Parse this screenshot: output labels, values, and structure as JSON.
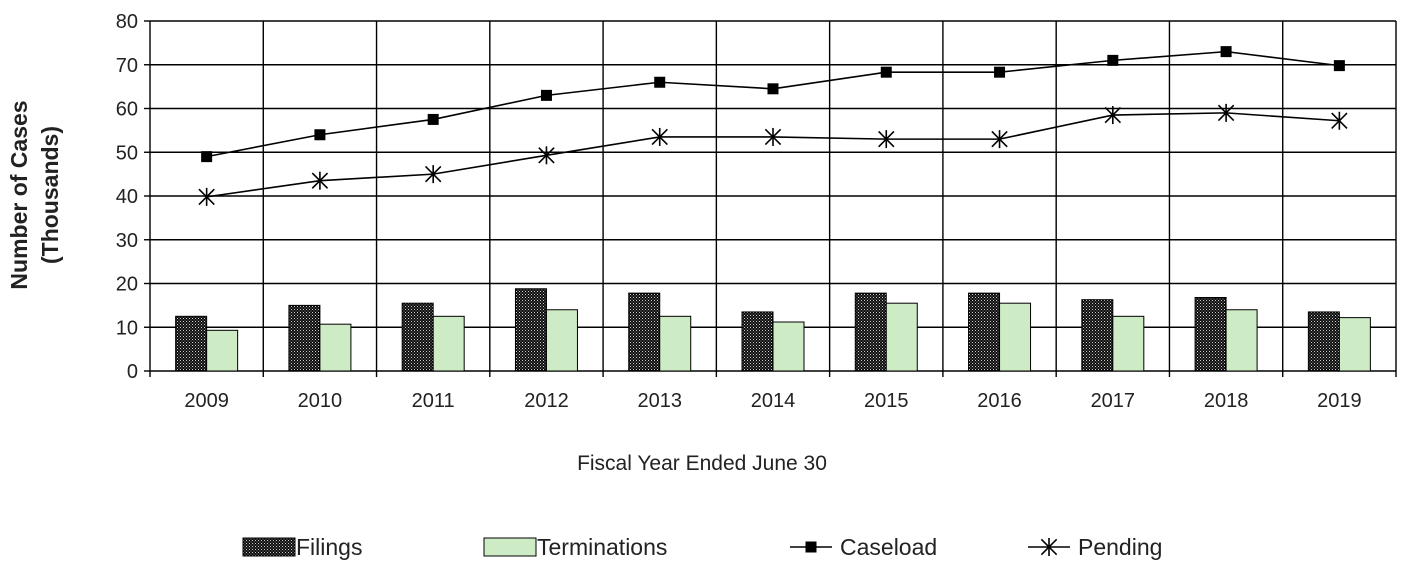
{
  "chart_data": {
    "type": "bar",
    "title": "",
    "xlabel": "Fiscal Year Ended June 30",
    "ylabel_lines": [
      "Number of Cases",
      "(Thousands)"
    ],
    "ylim": [
      0,
      80
    ],
    "yticks": [
      0,
      10,
      20,
      30,
      40,
      50,
      60,
      70,
      80
    ],
    "grid": true,
    "legend_position": "bottom",
    "categories": [
      "2009",
      "2010",
      "2011",
      "2012",
      "2013",
      "2014",
      "2015",
      "2016",
      "2017",
      "2018",
      "2019"
    ],
    "series": [
      {
        "name": "Filings",
        "kind": "bar",
        "style": "hatched-dark",
        "color": "#1a1a1a",
        "values": [
          12.5,
          15.0,
          15.5,
          18.8,
          17.8,
          13.5,
          17.8,
          17.8,
          16.3,
          16.8,
          13.5
        ]
      },
      {
        "name": "Terminations",
        "kind": "bar",
        "style": "solid",
        "color": "#cdebc4",
        "values": [
          9.3,
          10.7,
          12.5,
          14.0,
          12.5,
          11.2,
          15.5,
          15.5,
          12.5,
          14.0,
          12.2
        ]
      },
      {
        "name": "Caseload",
        "kind": "line",
        "marker": "square",
        "color": "#000000",
        "values": [
          49.0,
          54.0,
          57.5,
          63.0,
          66.0,
          64.5,
          68.3,
          68.3,
          71.0,
          73.0,
          69.8
        ]
      },
      {
        "name": "Pending",
        "kind": "line",
        "marker": "asterisk",
        "color": "#000000",
        "values": [
          39.8,
          43.5,
          45.0,
          49.3,
          53.5,
          53.5,
          53.0,
          53.0,
          58.5,
          59.0,
          57.2
        ]
      }
    ]
  }
}
